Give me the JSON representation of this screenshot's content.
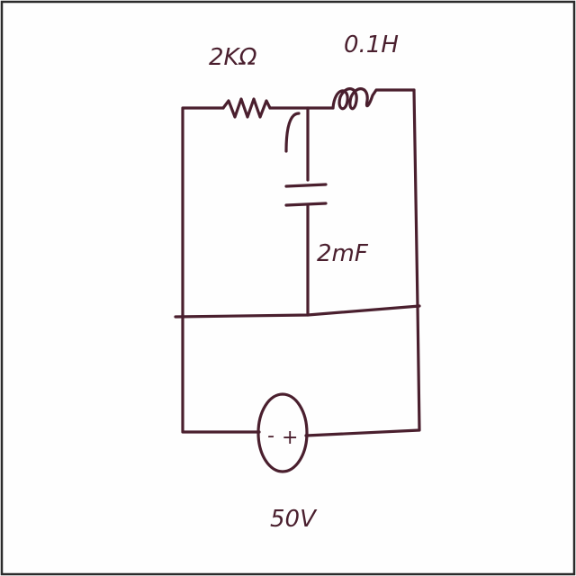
{
  "circuit": {
    "resistor_label": "2KΩ",
    "inductor_label": "0.1H",
    "capacitor_label": "2mF",
    "source_label": "50V",
    "source_negative": "-",
    "source_positive": "+"
  },
  "colors": {
    "ink": "#4a1f2e",
    "paper": "#fefefe",
    "frame": "#2b2b2b"
  }
}
